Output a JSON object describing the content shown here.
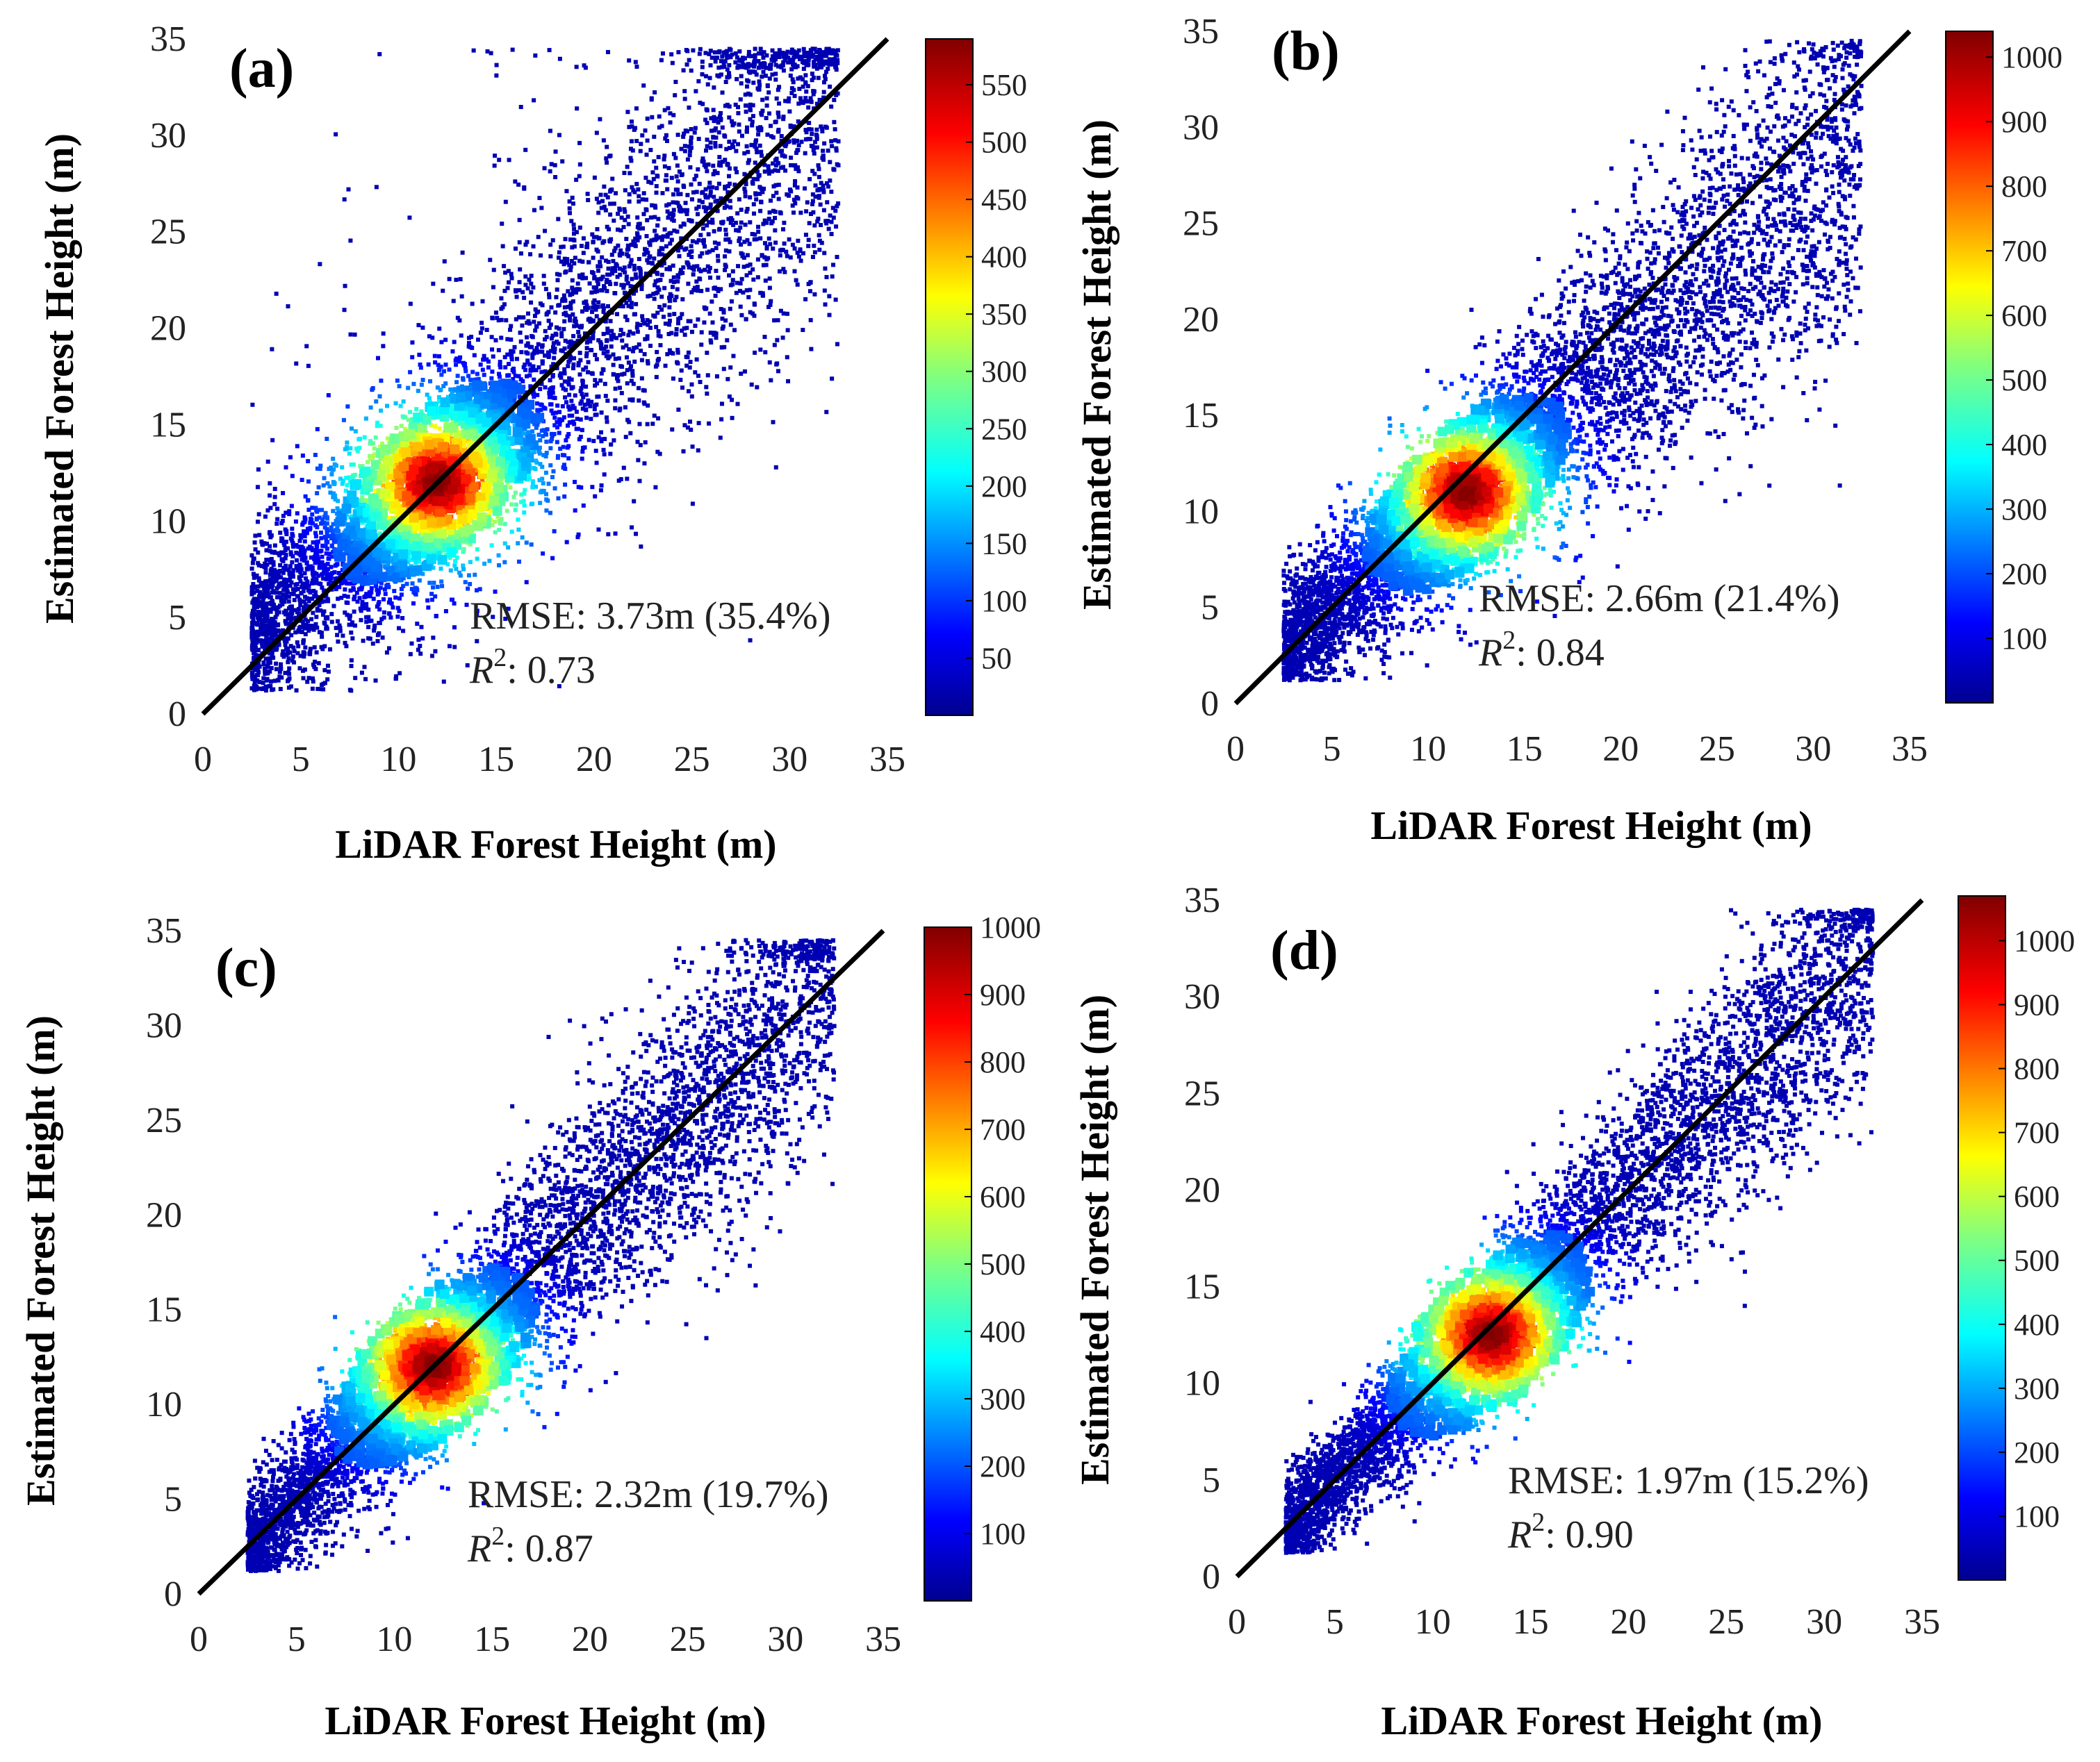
{
  "chart_data": [
    {
      "type": "scatter",
      "panel": "(a)",
      "xlabel": "LiDAR Forest Height (m)",
      "ylabel": "Estimated Forest Height (m)",
      "xlim": [
        0,
        35
      ],
      "ylim": [
        0,
        35
      ],
      "xticks": [
        "0",
        "5",
        "10",
        "15",
        "20",
        "25",
        "30",
        "35"
      ],
      "yticks": [
        "0",
        "5",
        "10",
        "15",
        "20",
        "25",
        "30",
        "35"
      ],
      "reference_line": "1:1",
      "rmse_text": "RMSE: 3.73m (35.4%)",
      "r2_label": "R",
      "r2_sup": "2",
      "r2_value": ": 0.73",
      "density_center": [
        12,
        12
      ],
      "colorbar": {
        "max": 590,
        "ticks": [
          "50",
          "100",
          "150",
          "200",
          "250",
          "300",
          "350",
          "400",
          "450",
          "500",
          "550"
        ]
      }
    },
    {
      "type": "scatter",
      "panel": "(b)",
      "xlabel": "LiDAR Forest Height (m)",
      "ylabel": "Estimated Forest Height (m)",
      "xlim": [
        0,
        35
      ],
      "ylim": [
        0,
        35
      ],
      "xticks": [
        "0",
        "5",
        "10",
        "15",
        "20",
        "25",
        "30",
        "35"
      ],
      "yticks": [
        "0",
        "5",
        "10",
        "15",
        "20",
        "25",
        "30",
        "35"
      ],
      "reference_line": "1:1",
      "rmse_text": "RMSE: 2.66m (21.4%)",
      "r2_label": "R",
      "r2_sup": "2",
      "r2_value": ": 0.84",
      "density_center": [
        12,
        11
      ],
      "colorbar": {
        "max": 1040,
        "ticks": [
          "100",
          "200",
          "300",
          "400",
          "500",
          "600",
          "700",
          "800",
          "900",
          "1000"
        ]
      }
    },
    {
      "type": "scatter",
      "panel": "(c)",
      "xlabel": "LiDAR Forest Height (m)",
      "ylabel": "Estimated Forest Height (m)",
      "xlim": [
        0,
        35
      ],
      "ylim": [
        0,
        35
      ],
      "xticks": [
        "0",
        "5",
        "10",
        "15",
        "20",
        "25",
        "30",
        "35"
      ],
      "yticks": [
        "0",
        "5",
        "10",
        "15",
        "20",
        "25",
        "30",
        "35"
      ],
      "reference_line": "1:1",
      "rmse_text": "RMSE: 2.32m (19.7%)",
      "r2_label": "R",
      "r2_sup": "2",
      "r2_value": ": 0.87",
      "density_center": [
        12,
        12
      ],
      "colorbar": {
        "max": 1000,
        "ticks": [
          "100",
          "200",
          "300",
          "400",
          "500",
          "600",
          "700",
          "800",
          "900",
          "1000"
        ]
      }
    },
    {
      "type": "scatter",
      "panel": "(d)",
      "xlabel": "LiDAR Forest Height (m)",
      "ylabel": "Estimated Forest Height (m)",
      "xlim": [
        0,
        35
      ],
      "ylim": [
        0,
        35
      ],
      "xticks": [
        "0",
        "5",
        "10",
        "15",
        "20",
        "25",
        "30",
        "35"
      ],
      "yticks": [
        "0",
        "5",
        "10",
        "15",
        "20",
        "25",
        "30",
        "35"
      ],
      "reference_line": "1:1",
      "rmse_text": "RMSE: 1.97m (15.2%)",
      "r2_label": "R",
      "r2_sup": "2",
      "r2_value": ": 0.90",
      "density_center": [
        13,
        12.5
      ],
      "colorbar": {
        "max": 1070,
        "ticks": [
          "100",
          "200",
          "300",
          "400",
          "500",
          "600",
          "700",
          "800",
          "900",
          "1000"
        ]
      }
    }
  ]
}
